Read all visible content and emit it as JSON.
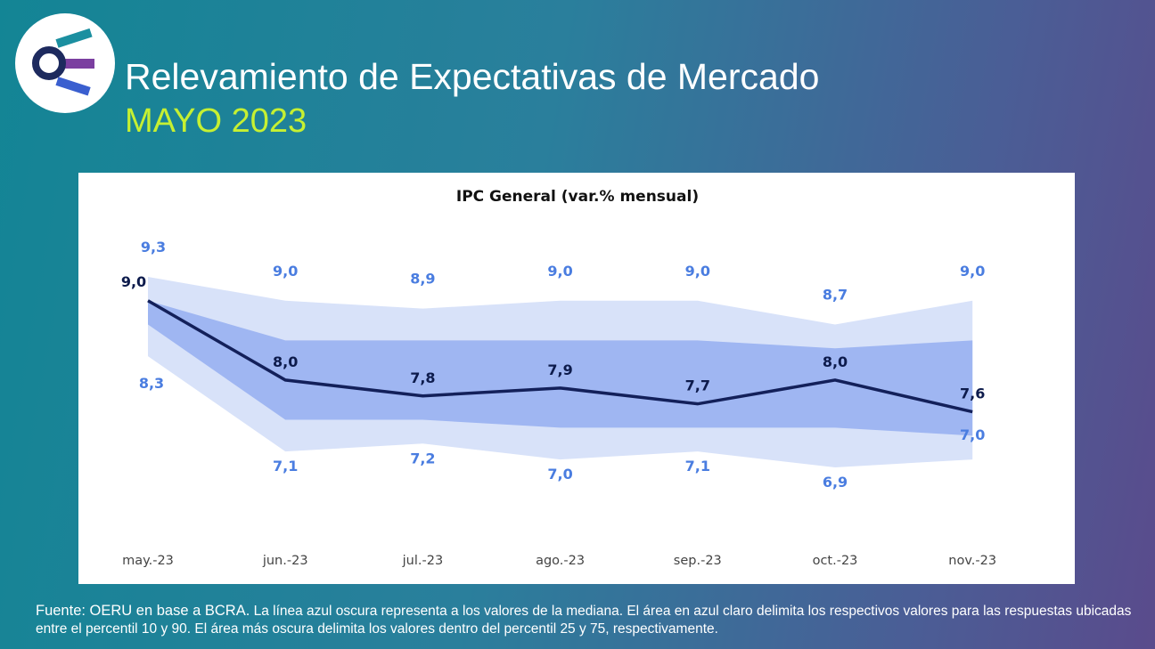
{
  "header": {
    "title": "Relevamiento de Expectativas de Mercado",
    "subtitle": "MAYO 2023"
  },
  "chart_data": {
    "type": "band-line",
    "title": "IPC General (var.% mensual)",
    "categories": [
      "may.-23",
      "jun.-23",
      "jul.-23",
      "ago.-23",
      "sep.-23",
      "oct.-23",
      "nov.-23"
    ],
    "median": {
      "color": "#13205a",
      "label_color": "#0d1b4c",
      "values": [
        9.0,
        8.0,
        7.8,
        7.9,
        7.7,
        8.0,
        7.6
      ],
      "value_labels": [
        "9,0",
        "8,0",
        "7,8",
        "7,9",
        "7,7",
        "8,0",
        "7,6"
      ]
    },
    "outer_band": {
      "color": "#d8e2f9",
      "label_color": "#4a7de0",
      "upper": {
        "values": [
          9.3,
          9.0,
          8.9,
          9.0,
          9.0,
          8.7,
          9.0
        ],
        "value_labels": [
          "9,3",
          "9,0",
          "8,9",
          "9,0",
          "9,0",
          "8,7",
          "9,0"
        ]
      },
      "lower": {
        "values": [
          8.3,
          7.1,
          7.2,
          7.0,
          7.1,
          6.9,
          7.0
        ],
        "value_labels": [
          "8,3",
          "7,1",
          "7,2",
          "7,0",
          "7,1",
          "6,9",
          "7,0"
        ]
      }
    },
    "inner_band": {
      "color": "#9fb6f2",
      "upper": {
        "values": [
          9.0,
          8.5,
          8.5,
          8.5,
          8.5,
          8.4,
          8.5
        ]
      },
      "lower": {
        "values": [
          8.7,
          7.5,
          7.5,
          7.4,
          7.4,
          7.4,
          7.3
        ]
      }
    }
  },
  "footnote": {
    "source": "Fuente: OERU en base a BCRA.",
    "text": "La línea azul oscura representa a los valores de la mediana. El área en azul claro delimita los respectivos valores para las respuestas ubicadas entre el percentil 10 y 90. El área más oscura delimita los valores dentro del percentil 25 y 75, respectivamente."
  }
}
